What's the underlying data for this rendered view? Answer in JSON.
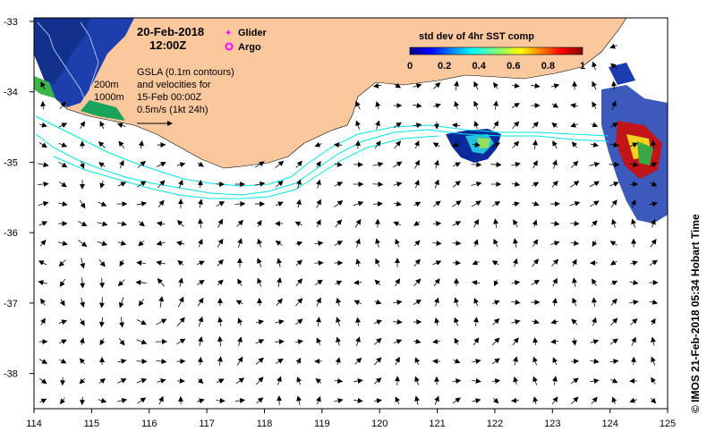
{
  "header": {
    "date": "20-Feb-2018",
    "time": "12:00Z"
  },
  "legend": {
    "glider": "Glider",
    "argo": "Argo",
    "glider_color": "#ff00ff",
    "argo_color": "#ff00ff"
  },
  "description": {
    "line1": "GSLA (0.1m contours)",
    "line2": "and velocities for",
    "line3": "15-Feb 00:00Z",
    "line4": "0.5m/s (1kt 24h)"
  },
  "bathymetry": {
    "label_200": "200m",
    "label_1000": "1000m"
  },
  "colorbar": {
    "title": "std dev of 4hr SST comp",
    "ticks": [
      "0",
      "0.2",
      "0.4",
      "0.6",
      "0.8",
      "1"
    ]
  },
  "axes": {
    "x_ticks": [
      "114",
      "115",
      "116",
      "117",
      "118",
      "119",
      "120",
      "121",
      "122",
      "123",
      "124",
      "125"
    ],
    "y_ticks": [
      "-33",
      "-34",
      "-35",
      "-36",
      "-37",
      "-38"
    ]
  },
  "credit": "© IMOS 21-Feb-2018 05:34 Hobart Time",
  "colors": {
    "land": "#fbc89e",
    "contour": "#00e5e5",
    "arrow": "#000000"
  }
}
